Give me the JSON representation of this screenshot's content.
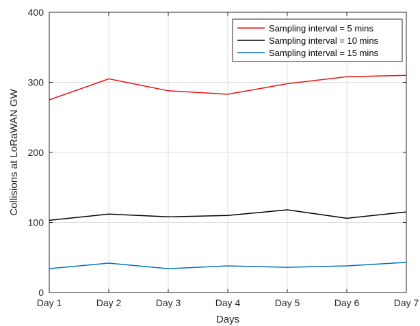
{
  "chart_data": {
    "type": "line",
    "xlabel": "Days",
    "ylabel": "Collisions at LoRaWAN GW",
    "categories": [
      "Day 1",
      "Day 2",
      "Day 3",
      "Day 4",
      "Day 5",
      "Day 6",
      "Day 7"
    ],
    "ylim": [
      0,
      400
    ],
    "yticks": [
      0,
      100,
      200,
      300,
      400
    ],
    "grid": true,
    "legend_position": "top-right",
    "series": [
      {
        "name": "Sampling interval = 5 mins",
        "color": "#e8120f",
        "values": [
          275,
          305,
          288,
          283,
          298,
          308,
          310
        ]
      },
      {
        "name": "Sampling interval = 10 mins",
        "color": "#000000",
        "values": [
          103,
          112,
          108,
          110,
          118,
          106,
          115
        ]
      },
      {
        "name": "Sampling interval = 15 mins",
        "color": "#0072bd",
        "values": [
          34,
          42,
          34,
          38,
          36,
          38,
          43
        ]
      }
    ]
  }
}
